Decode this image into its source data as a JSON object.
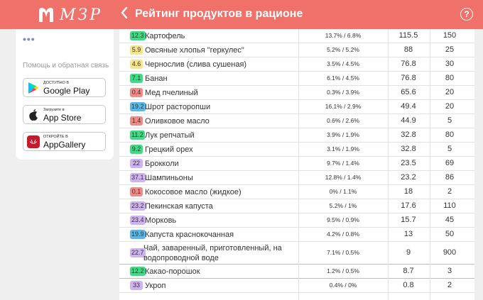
{
  "header": {
    "logo_text": "МЗР",
    "title": "Рейтинг продуктов в рационе",
    "help_icon": "?"
  },
  "sidebar": {
    "dots": "•••",
    "help_label": "Помощь и обратная связь",
    "stores": [
      {
        "small": "ДОСТУПНО В",
        "big": "Google Play",
        "icon": "google-play-icon"
      },
      {
        "small": "Загрузите в",
        "big": "App Store",
        "icon": "apple-icon"
      },
      {
        "small": "ОТКРОЙТЕ В",
        "big": "AppGallery",
        "icon": "huawei-icon"
      }
    ]
  },
  "colors": {
    "green": "#3ddc84",
    "yellow": "#f6e58d",
    "red": "#f08a84",
    "blue": "#58b9e8",
    "purple": "#cdb4f0"
  },
  "rows": [
    {
      "score": "12.3",
      "color": "green",
      "name": "Картофель",
      "pct": "13.7% / 6.8%",
      "v1": "115.5",
      "v2": "150"
    },
    {
      "score": "5.9",
      "color": "yellow",
      "name": "Овсяные хлопья \"геркулес\"",
      "pct": "5.2% / 5.2%",
      "v1": "88",
      "v2": "25"
    },
    {
      "score": "4.6",
      "color": "yellow",
      "name": "Чернослив (слива сушеная)",
      "pct": "3.5% / 4.5%",
      "v1": "76.8",
      "v2": "30"
    },
    {
      "score": "7.1",
      "color": "green",
      "name": "Банан",
      "pct": "6.1% / 4.5%",
      "v1": "76.8",
      "v2": "80"
    },
    {
      "score": "0.4",
      "color": "red",
      "name": "Мед пчелиный",
      "pct": "0.3% / 3.9%",
      "v1": "65.6",
      "v2": "20"
    },
    {
      "score": "19.2",
      "color": "blue",
      "name": "Шрот расторопши",
      "pct": "16.1% / 2.9%",
      "v1": "49.4",
      "v2": "20"
    },
    {
      "score": "1.4",
      "color": "red",
      "name": "Оливковое масло",
      "pct": "0.6% / 2.6%",
      "v1": "44.9",
      "v2": "5"
    },
    {
      "score": "11.2",
      "color": "green",
      "name": "Лук репчатый",
      "pct": "3.9% / 1.9%",
      "v1": "32.8",
      "v2": "80"
    },
    {
      "score": "9.2",
      "color": "green",
      "name": "Грецкий орех",
      "pct": "3.1% / 1.9%",
      "v1": "32.8",
      "v2": "5"
    },
    {
      "score": "22",
      "color": "purple",
      "name": "Брокколи",
      "pct": "9.7% / 1.4%",
      "v1": "23.5",
      "v2": "69"
    },
    {
      "score": "37.1",
      "color": "purple",
      "name": "Шампиньоны",
      "pct": "12.8% / 1.4%",
      "v1": "23.2",
      "v2": "86"
    },
    {
      "score": "0.1",
      "color": "red",
      "name": "Кокосовое масло (жидкое)",
      "pct": "0% / 1.1%",
      "v1": "18",
      "v2": "2"
    },
    {
      "score": "23.2",
      "color": "purple",
      "name": "Пекинская капуста",
      "pct": "5.2% / 1%",
      "v1": "17.6",
      "v2": "110"
    },
    {
      "score": "23.4",
      "color": "purple",
      "name": "Морковь",
      "pct": "9.5% / 0.9%",
      "v1": "15.7",
      "v2": "45"
    },
    {
      "score": "19.9",
      "color": "blue",
      "name": "Капуста краснокочанная",
      "pct": "4.2% / 0.8%",
      "v1": "13",
      "v2": "50"
    },
    {
      "score": "22.7",
      "color": "purple",
      "name": "Чай, заваренный, приготовленный, на водопроводной воде",
      "pct": "7.1% / 0.5%",
      "v1": "9",
      "v2": "900"
    },
    {
      "score": "12.2",
      "color": "green",
      "name": "Какао-порошок",
      "pct": "1.2% / 0.5%",
      "v1": "8.7",
      "v2": "3"
    },
    {
      "score": "33",
      "color": "purple",
      "name": "Укроп",
      "pct": "0.4% / 0%",
      "v1": "0.8",
      "v2": "2"
    }
  ]
}
